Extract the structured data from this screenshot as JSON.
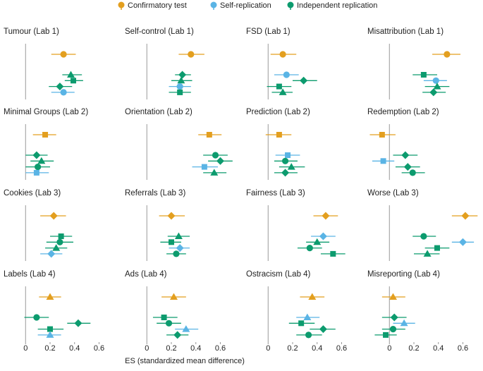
{
  "legend": [
    {
      "name": "Confirmatory test",
      "color": "#e39f1f"
    },
    {
      "name": "Self-replication",
      "color": "#5ab4e5"
    },
    {
      "name": "Independent replication",
      "color": "#0c9b6e"
    }
  ],
  "xlabel": "ES (standardized mean difference)",
  "chart_data": [
    {
      "type": "forest",
      "title": "Tumour (Lab 1)",
      "xlim": [
        -0.18,
        0.77
      ],
      "markers": [
        "circle",
        "triangle",
        "square",
        "diamond",
        "circle"
      ],
      "colors": [
        "#e39f1f",
        "#0c9b6e",
        "#0c9b6e",
        "#0c9b6e",
        "#5ab4e5"
      ],
      "values": [
        0.31,
        0.37,
        0.39,
        0.28,
        0.31
      ],
      "ci": [
        [
          0.21,
          0.41
        ],
        [
          0.3,
          0.46
        ],
        [
          0.32,
          0.47
        ],
        [
          0.19,
          0.38
        ],
        [
          0.21,
          0.4
        ]
      ]
    },
    {
      "type": "forest",
      "title": "Self-control (Lab 1)",
      "xlim": [
        -0.18,
        0.77
      ],
      "markers": [
        "circle",
        "diamond",
        "triangle",
        "circle",
        "square"
      ],
      "colors": [
        "#e39f1f",
        "#0c9b6e",
        "#0c9b6e",
        "#5ab4e5",
        "#0c9b6e"
      ],
      "values": [
        0.36,
        0.29,
        0.28,
        0.27,
        0.27
      ],
      "ci": [
        [
          0.26,
          0.47
        ],
        [
          0.23,
          0.36
        ],
        [
          0.2,
          0.37
        ],
        [
          0.18,
          0.36
        ],
        [
          0.18,
          0.36
        ]
      ]
    },
    {
      "type": "forest",
      "title": "FSD (Lab 1)",
      "xlim": [
        -0.18,
        0.77
      ],
      "markers": [
        "circle",
        "circle",
        "diamond",
        "square",
        "triangle"
      ],
      "colors": [
        "#e39f1f",
        "#5ab4e5",
        "#0c9b6e",
        "#0c9b6e",
        "#0c9b6e"
      ],
      "values": [
        0.12,
        0.15,
        0.29,
        0.09,
        0.12
      ],
      "ci": [
        [
          0.02,
          0.23
        ],
        [
          0.05,
          0.25
        ],
        [
          0.2,
          0.4
        ],
        [
          -0.01,
          0.19
        ],
        [
          0.03,
          0.2
        ]
      ]
    },
    {
      "type": "forest",
      "title": "Misattribution (Lab 1)",
      "xlim": [
        -0.18,
        0.77
      ],
      "markers": [
        "circle",
        "square",
        "circle",
        "triangle",
        "diamond"
      ],
      "colors": [
        "#e39f1f",
        "#0c9b6e",
        "#5ab4e5",
        "#0c9b6e",
        "#0c9b6e"
      ],
      "values": [
        0.47,
        0.28,
        0.38,
        0.39,
        0.36
      ],
      "ci": [
        [
          0.35,
          0.58
        ],
        [
          0.19,
          0.39
        ],
        [
          0.28,
          0.47
        ],
        [
          0.29,
          0.49
        ],
        [
          0.27,
          0.46
        ]
      ]
    },
    {
      "type": "forest",
      "title": "Minimal Groups (Lab 2)",
      "xlim": [
        -0.18,
        0.77
      ],
      "markers": [
        "square",
        "diamond",
        "triangle",
        "circle",
        "square"
      ],
      "colors": [
        "#e39f1f",
        "#0c9b6e",
        "#0c9b6e",
        "#0c9b6e",
        "#5ab4e5"
      ],
      "values": [
        0.16,
        0.09,
        0.13,
        0.1,
        0.09
      ],
      "ci": [
        [
          0.06,
          0.25
        ],
        [
          0.0,
          0.18
        ],
        [
          0.04,
          0.23
        ],
        [
          0.0,
          0.2
        ],
        [
          0.0,
          0.19
        ]
      ]
    },
    {
      "type": "forest",
      "title": "Orientation (Lab 2)",
      "xlim": [
        -0.18,
        0.77
      ],
      "markers": [
        "square",
        "circle",
        "diamond",
        "square",
        "triangle"
      ],
      "colors": [
        "#e39f1f",
        "#0c9b6e",
        "#0c9b6e",
        "#5ab4e5",
        "#0c9b6e"
      ],
      "values": [
        0.51,
        0.56,
        0.6,
        0.47,
        0.55
      ],
      "ci": [
        [
          0.42,
          0.61
        ],
        [
          0.46,
          0.66
        ],
        [
          0.5,
          0.7
        ],
        [
          0.37,
          0.58
        ],
        [
          0.46,
          0.65
        ]
      ]
    },
    {
      "type": "forest",
      "title": "Prediction (Lab 2)",
      "xlim": [
        -0.18,
        0.77
      ],
      "markers": [
        "square",
        "square",
        "circle",
        "triangle",
        "diamond"
      ],
      "colors": [
        "#e39f1f",
        "#5ab4e5",
        "#0c9b6e",
        "#0c9b6e",
        "#0c9b6e"
      ],
      "values": [
        0.09,
        0.16,
        0.14,
        0.19,
        0.14
      ],
      "ci": [
        [
          -0.02,
          0.19
        ],
        [
          0.06,
          0.26
        ],
        [
          0.05,
          0.24
        ],
        [
          0.09,
          0.3
        ],
        [
          0.05,
          0.24
        ]
      ]
    },
    {
      "type": "forest",
      "title": "Redemption (Lab 2)",
      "xlim": [
        -0.18,
        0.77
      ],
      "markers": [
        "square",
        "diamond",
        "square",
        "diamond",
        "circle"
      ],
      "colors": [
        "#e39f1f",
        "#0c9b6e",
        "#5ab4e5",
        "#0c9b6e",
        "#0c9b6e"
      ],
      "values": [
        -0.06,
        0.13,
        -0.05,
        0.15,
        0.19
      ],
      "ci": [
        [
          -0.16,
          0.05
        ],
        [
          0.03,
          0.23
        ],
        [
          -0.14,
          0.04
        ],
        [
          0.05,
          0.25
        ],
        [
          0.1,
          0.29
        ]
      ]
    },
    {
      "type": "forest",
      "title": "Cookies (Lab 3)",
      "xlim": [
        -0.18,
        0.77
      ],
      "markers": [
        "diamond",
        "square",
        "circle",
        "triangle",
        "diamond"
      ],
      "colors": [
        "#e39f1f",
        "#0c9b6e",
        "#0c9b6e",
        "#0c9b6e",
        "#5ab4e5"
      ],
      "values": [
        0.23,
        0.29,
        0.28,
        0.25,
        0.21
      ],
      "ci": [
        [
          0.12,
          0.33
        ],
        [
          0.2,
          0.38
        ],
        [
          0.17,
          0.39
        ],
        [
          0.16,
          0.34
        ],
        [
          0.12,
          0.3
        ]
      ]
    },
    {
      "type": "forest",
      "title": "Referrals (Lab 3)",
      "xlim": [
        -0.18,
        0.77
      ],
      "markers": [
        "diamond",
        "triangle",
        "square",
        "diamond",
        "circle"
      ],
      "colors": [
        "#e39f1f",
        "#0c9b6e",
        "#0c9b6e",
        "#5ab4e5",
        "#0c9b6e"
      ],
      "values": [
        0.2,
        0.26,
        0.2,
        0.27,
        0.24
      ],
      "ci": [
        [
          0.1,
          0.31
        ],
        [
          0.17,
          0.35
        ],
        [
          0.11,
          0.28
        ],
        [
          0.18,
          0.35
        ],
        [
          0.16,
          0.32
        ]
      ]
    },
    {
      "type": "forest",
      "title": "Fairness (Lab 3)",
      "xlim": [
        -0.18,
        0.77
      ],
      "markers": [
        "diamond",
        "diamond",
        "triangle",
        "circle",
        "square"
      ],
      "colors": [
        "#e39f1f",
        "#5ab4e5",
        "#0c9b6e",
        "#0c9b6e",
        "#0c9b6e"
      ],
      "values": [
        0.47,
        0.45,
        0.4,
        0.34,
        0.53
      ],
      "ci": [
        [
          0.37,
          0.57
        ],
        [
          0.35,
          0.55
        ],
        [
          0.31,
          0.5
        ],
        [
          0.24,
          0.44
        ],
        [
          0.43,
          0.63
        ]
      ]
    },
    {
      "type": "forest",
      "title": "Worse (Lab 3)",
      "xlim": [
        -0.18,
        0.77
      ],
      "markers": [
        "diamond",
        "circle",
        "diamond",
        "square",
        "triangle"
      ],
      "colors": [
        "#e39f1f",
        "#0c9b6e",
        "#5ab4e5",
        "#0c9b6e",
        "#0c9b6e"
      ],
      "values": [
        0.62,
        0.28,
        0.6,
        0.39,
        0.31
      ],
      "ci": [
        [
          0.51,
          0.72
        ],
        [
          0.19,
          0.38
        ],
        [
          0.51,
          0.69
        ],
        [
          0.29,
          0.49
        ],
        [
          0.2,
          0.41
        ]
      ]
    },
    {
      "type": "forest",
      "title": "Labels (Lab 4)",
      "xlim": [
        -0.18,
        0.77
      ],
      "xticks": [
        0,
        0.2,
        0.4,
        0.6
      ],
      "markers": [
        "triangle",
        "circle",
        "diamond",
        "square",
        "triangle"
      ],
      "colors": [
        "#e39f1f",
        "#0c9b6e",
        "#0c9b6e",
        "#0c9b6e",
        "#5ab4e5"
      ],
      "values": [
        0.2,
        0.09,
        0.43,
        0.2,
        0.2
      ],
      "ci": [
        [
          0.11,
          0.29
        ],
        [
          -0.01,
          0.19
        ],
        [
          0.34,
          0.53
        ],
        [
          0.1,
          0.31
        ],
        [
          0.1,
          0.29
        ]
      ]
    },
    {
      "type": "forest",
      "title": "Ads (Lab 4)",
      "xlim": [
        -0.18,
        0.77
      ],
      "xticks": [
        0,
        0.2,
        0.4,
        0.6
      ],
      "markers": [
        "triangle",
        "square",
        "circle",
        "triangle",
        "diamond"
      ],
      "colors": [
        "#e39f1f",
        "#0c9b6e",
        "#0c9b6e",
        "#5ab4e5",
        "#0c9b6e"
      ],
      "values": [
        0.22,
        0.14,
        0.18,
        0.32,
        0.25
      ],
      "ci": [
        [
          0.12,
          0.32
        ],
        [
          0.05,
          0.25
        ],
        [
          0.08,
          0.28
        ],
        [
          0.23,
          0.42
        ],
        [
          0.16,
          0.34
        ]
      ]
    },
    {
      "type": "forest",
      "title": "Ostracism (Lab 4)",
      "xlim": [
        -0.18,
        0.77
      ],
      "xticks": [
        0,
        0.2,
        0.4,
        0.6
      ],
      "markers": [
        "triangle",
        "triangle",
        "square",
        "diamond",
        "circle"
      ],
      "colors": [
        "#e39f1f",
        "#5ab4e5",
        "#0c9b6e",
        "#0c9b6e",
        "#0c9b6e"
      ],
      "values": [
        0.36,
        0.32,
        0.27,
        0.45,
        0.33
      ],
      "ci": [
        [
          0.26,
          0.46
        ],
        [
          0.23,
          0.42
        ],
        [
          0.17,
          0.38
        ],
        [
          0.34,
          0.55
        ],
        [
          0.23,
          0.44
        ]
      ]
    },
    {
      "type": "forest",
      "title": "Misreporting (Lab 4)",
      "xlim": [
        -0.18,
        0.77
      ],
      "xticks": [
        0,
        0.2,
        0.4,
        0.6
      ],
      "markers": [
        "triangle",
        "diamond",
        "triangle",
        "circle",
        "square"
      ],
      "colors": [
        "#e39f1f",
        "#0c9b6e",
        "#5ab4e5",
        "#0c9b6e",
        "#0c9b6e"
      ],
      "values": [
        0.03,
        0.04,
        0.12,
        0.03,
        -0.03
      ],
      "ci": [
        [
          -0.06,
          0.13
        ],
        [
          -0.06,
          0.14
        ],
        [
          0.03,
          0.21
        ],
        [
          -0.06,
          0.13
        ],
        [
          -0.12,
          0.06
        ]
      ]
    }
  ]
}
